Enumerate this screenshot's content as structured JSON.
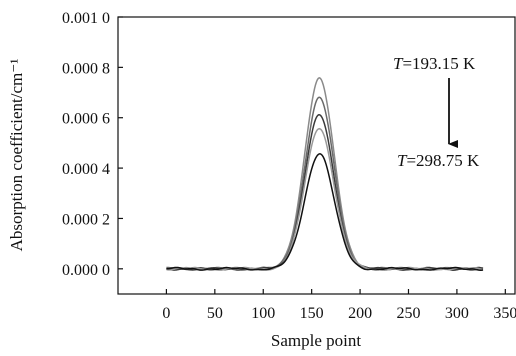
{
  "chart_data": {
    "type": "line",
    "xlabel": "Sample point",
    "ylabel": "Absorption coefficient/cm⁻¹",
    "xlim": [
      -50,
      360
    ],
    "ylim": [
      -0.0001,
      0.001
    ],
    "x_ticks": [
      0,
      50,
      100,
      150,
      200,
      250,
      300,
      350
    ],
    "x_tick_labels": [
      "0",
      "50",
      "100",
      "150",
      "200",
      "250",
      "300",
      "350"
    ],
    "y_ticks": [
      0.0,
      0.0002,
      0.0004,
      0.0006,
      0.0008,
      0.001
    ],
    "y_tick_labels": [
      "0.000 0",
      "0.000 2",
      "0.000 4",
      "0.000 6",
      "0.000 8",
      "0.001 0"
    ],
    "grid": false,
    "series": [
      {
        "peak_x": 158,
        "peak_y": 0.00076,
        "width": 15,
        "color": "#8a8a8a"
      },
      {
        "peak_x": 158,
        "peak_y": 0.00068,
        "width": 15,
        "color": "#6a6a6a"
      },
      {
        "peak_x": 158,
        "peak_y": 0.00061,
        "width": 15,
        "color": "#3a3a3a"
      },
      {
        "peak_x": 158,
        "peak_y": 0.00056,
        "width": 15,
        "color": "#9a9a9a"
      },
      {
        "peak_x": 158,
        "peak_y": 0.00046,
        "width": 15,
        "color": "#111111"
      }
    ],
    "x_start": 0,
    "x_end": 327,
    "annotations": {
      "top_T": "T",
      "top_value": "=193.15 K",
      "bottom_T": "T",
      "bottom_value": "=298.75 K"
    }
  }
}
